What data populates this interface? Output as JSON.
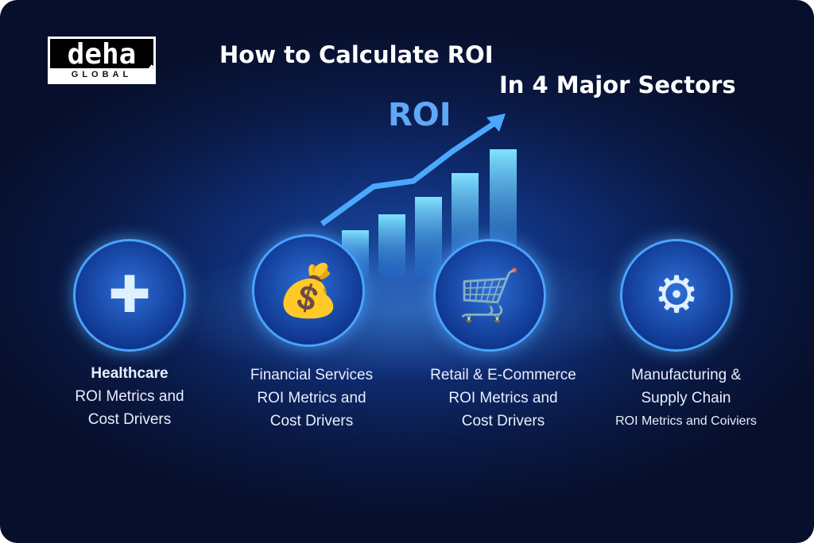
{
  "logo": {
    "word": "deha",
    "sub": "GLOBAL"
  },
  "title": {
    "line1": "How to Calculate ROI",
    "line2": "In 4 Major Sectors"
  },
  "graphic": {
    "label": "ROI",
    "icon": "rising-bar-chart-arrow"
  },
  "sectors": [
    {
      "title": "Healthcare",
      "line2": "ROI Metrics and",
      "line3": "Cost Drivers",
      "icon": "medical-cross-stethoscope-icon"
    },
    {
      "title": "Financial Services",
      "line2": "ROI Metrics and",
      "line3": "Cost Drivers",
      "icon": "money-bag-coins-icon"
    },
    {
      "title": "Retail & E-Commerce",
      "line2": "ROI Metrics and",
      "line3": "Cost Drivers",
      "icon": "shopping-cart-tag-icon"
    },
    {
      "title": "Manufacturing &",
      "line2": "Supply Chain",
      "line3": "ROI Metrics and Coiviers",
      "icon": "robot-arm-icon"
    }
  ],
  "colors": {
    "accent": "#4aa3ff",
    "background": "#0a1a47"
  }
}
